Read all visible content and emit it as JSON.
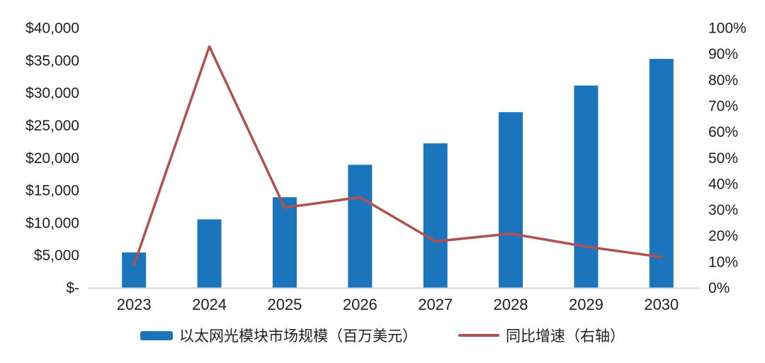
{
  "chart_data": {
    "type": "bar",
    "subtype": "combo-bar-line-dual-axis",
    "categories": [
      "2023",
      "2024",
      "2025",
      "2026",
      "2027",
      "2028",
      "2029",
      "2030"
    ],
    "series": [
      {
        "name": "以太网光模块市场规模（百万美元）",
        "type": "bar",
        "axis": "left",
        "color": "#1B75BC",
        "values": [
          5500,
          10600,
          14000,
          19000,
          22300,
          27100,
          31200,
          35300
        ]
      },
      {
        "name": "同比增速（右轴）",
        "type": "line",
        "axis": "right",
        "color": "#B0514E",
        "values": [
          9,
          93,
          31,
          35,
          18,
          21,
          16,
          12
        ]
      }
    ],
    "left_axis": {
      "min": 0,
      "max": 40000,
      "tick_step": 5000,
      "ticks": [
        "$-",
        "$5,000",
        "$10,000",
        "$15,000",
        "$20,000",
        "$25,000",
        "$30,000",
        "$35,000",
        "$40,000"
      ]
    },
    "right_axis": {
      "min": 0,
      "max": 100,
      "tick_step": 10,
      "ticks": [
        "0%",
        "10%",
        "20%",
        "30%",
        "40%",
        "50%",
        "60%",
        "70%",
        "80%",
        "90%",
        "100%"
      ]
    },
    "grid": false,
    "legend_position": "bottom",
    "background": "#FFFFFF",
    "axis_line_color": "#D6D6D6",
    "text_color": "#1F1F1F",
    "title": "",
    "xlabel": "",
    "ylabel_left": "",
    "ylabel_right": ""
  },
  "legend": {
    "items": [
      {
        "label": "以太网光模块市场规模（百万美元）",
        "marker": "bar",
        "color": "#1B75BC"
      },
      {
        "label": "同比增速（右轴）",
        "marker": "line",
        "color": "#B0514E"
      }
    ]
  }
}
